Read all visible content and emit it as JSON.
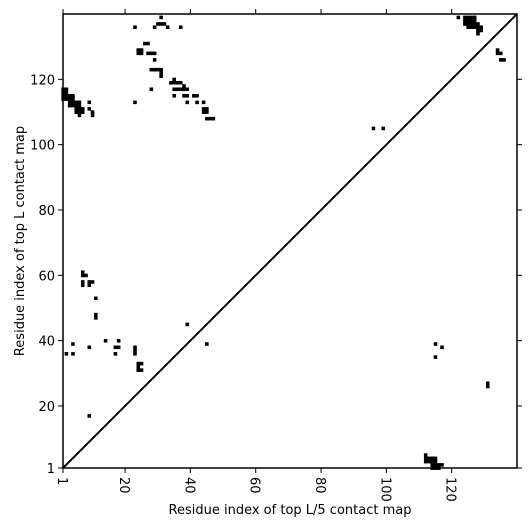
{
  "chart_data": {
    "type": "heatmap",
    "title": "",
    "xlabel": "Residue index of top L/5 contact map",
    "ylabel": "Residue index of top L contact map",
    "xlim": [
      1,
      140
    ],
    "ylim": [
      1,
      140
    ],
    "xticks": [
      1,
      20,
      40,
      60,
      80,
      100,
      120
    ],
    "yticks": [
      1,
      20,
      40,
      60,
      80,
      100,
      120
    ],
    "diagonal": true,
    "grid": false,
    "colors": {
      "contact": "#000000",
      "background": "#ffffff",
      "frame": "#000000"
    },
    "upper_contacts": [
      [
        1,
        117
      ],
      [
        1,
        116
      ],
      [
        1,
        115
      ],
      [
        1,
        114
      ],
      [
        2,
        117
      ],
      [
        2,
        116
      ],
      [
        2,
        115
      ],
      [
        2,
        114
      ],
      [
        3,
        115
      ],
      [
        3,
        114
      ],
      [
        3,
        113
      ],
      [
        3,
        112
      ],
      [
        4,
        115
      ],
      [
        4,
        114
      ],
      [
        4,
        113
      ],
      [
        4,
        112
      ],
      [
        5,
        113
      ],
      [
        5,
        112
      ],
      [
        5,
        111
      ],
      [
        5,
        110
      ],
      [
        6,
        113
      ],
      [
        6,
        112
      ],
      [
        6,
        111
      ],
      [
        6,
        110
      ],
      [
        6,
        109
      ],
      [
        7,
        111
      ],
      [
        7,
        110
      ],
      [
        9,
        113
      ],
      [
        9,
        111
      ],
      [
        10,
        110
      ],
      [
        10,
        109
      ],
      [
        23,
        136
      ],
      [
        23,
        113
      ],
      [
        24,
        129
      ],
      [
        24,
        128
      ],
      [
        25,
        129
      ],
      [
        25,
        128
      ],
      [
        26,
        131
      ],
      [
        27,
        131
      ],
      [
        27,
        128
      ],
      [
        28,
        128
      ],
      [
        28,
        123
      ],
      [
        28,
        117
      ],
      [
        29,
        136
      ],
      [
        29,
        128
      ],
      [
        29,
        126
      ],
      [
        29,
        123
      ],
      [
        30,
        137
      ],
      [
        30,
        123
      ],
      [
        31,
        139
      ],
      [
        31,
        137
      ],
      [
        31,
        123
      ],
      [
        31,
        122
      ],
      [
        31,
        121
      ],
      [
        32,
        137
      ],
      [
        33,
        136
      ],
      [
        34,
        119
      ],
      [
        35,
        120
      ],
      [
        35,
        119
      ],
      [
        35,
        117
      ],
      [
        35,
        115
      ],
      [
        36,
        119
      ],
      [
        36,
        117
      ],
      [
        37,
        136
      ],
      [
        37,
        119
      ],
      [
        37,
        117
      ],
      [
        38,
        118
      ],
      [
        38,
        117
      ],
      [
        38,
        115
      ],
      [
        39,
        117
      ],
      [
        39,
        115
      ],
      [
        39,
        113
      ],
      [
        41,
        115
      ],
      [
        42,
        115
      ],
      [
        42,
        113
      ],
      [
        44,
        113
      ],
      [
        44,
        111
      ],
      [
        44,
        110
      ],
      [
        45,
        111
      ],
      [
        45,
        110
      ],
      [
        45,
        108
      ],
      [
        46,
        108
      ],
      [
        47,
        108
      ],
      [
        96,
        105
      ],
      [
        99,
        105
      ],
      [
        122,
        139
      ],
      [
        124,
        139
      ],
      [
        124,
        138
      ],
      [
        124,
        137
      ],
      [
        125,
        139
      ],
      [
        125,
        138
      ],
      [
        125,
        137
      ],
      [
        125,
        136
      ],
      [
        126,
        139
      ],
      [
        126,
        138
      ],
      [
        126,
        137
      ],
      [
        126,
        136
      ],
      [
        127,
        139
      ],
      [
        127,
        138
      ],
      [
        127,
        137
      ],
      [
        127,
        136
      ],
      [
        128,
        137
      ],
      [
        128,
        136
      ],
      [
        128,
        135
      ],
      [
        128,
        134
      ],
      [
        129,
        136
      ],
      [
        129,
        135
      ],
      [
        134,
        129
      ],
      [
        134,
        128
      ],
      [
        135,
        128
      ],
      [
        135,
        126
      ],
      [
        136,
        126
      ]
    ],
    "lower_contacts": [
      [
        2,
        36
      ],
      [
        4,
        39
      ],
      [
        4,
        36
      ],
      [
        7,
        61
      ],
      [
        7,
        60
      ],
      [
        7,
        58
      ],
      [
        7,
        57
      ],
      [
        8,
        60
      ],
      [
        9,
        58
      ],
      [
        9,
        57
      ],
      [
        9,
        38
      ],
      [
        9,
        17
      ],
      [
        10,
        58
      ],
      [
        11,
        53
      ],
      [
        11,
        48
      ],
      [
        11,
        47
      ],
      [
        14,
        40
      ],
      [
        17,
        38
      ],
      [
        17,
        36
      ],
      [
        18,
        40
      ],
      [
        18,
        38
      ],
      [
        23,
        38
      ],
      [
        23,
        37
      ],
      [
        23,
        36
      ],
      [
        24,
        33
      ],
      [
        24,
        32
      ],
      [
        24,
        31
      ],
      [
        25,
        33
      ],
      [
        25,
        31
      ],
      [
        39,
        45
      ],
      [
        45,
        39
      ],
      [
        112,
        5
      ],
      [
        112,
        4
      ],
      [
        112,
        3
      ],
      [
        113,
        4
      ],
      [
        113,
        3
      ],
      [
        114,
        4
      ],
      [
        114,
        3
      ],
      [
        114,
        2
      ],
      [
        114,
        1
      ],
      [
        115,
        39
      ],
      [
        115,
        35
      ],
      [
        115,
        4
      ],
      [
        115,
        3
      ],
      [
        115,
        2
      ],
      [
        115,
        1
      ],
      [
        116,
        2
      ],
      [
        116,
        1
      ],
      [
        117,
        2
      ],
      [
        117,
        38
      ],
      [
        131,
        27
      ],
      [
        131,
        26
      ]
    ]
  }
}
